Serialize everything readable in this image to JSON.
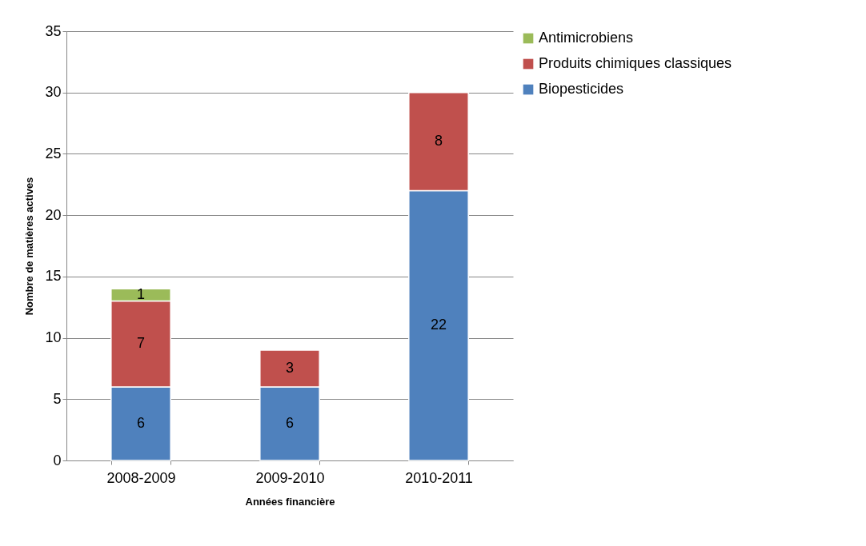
{
  "chart_data": {
    "type": "bar",
    "stacked": true,
    "xlabel": "Années financière",
    "ylabel": "Nombre de matières actives",
    "categories": [
      "2008-2009",
      "2009-2010",
      "2010-2011"
    ],
    "series": [
      {
        "name": "Biopesticides",
        "color": "#4f81bd",
        "values": [
          6,
          6,
          22
        ]
      },
      {
        "name": "Produits chimiques classiques",
        "color": "#c0504d",
        "values": [
          7,
          3,
          8
        ]
      },
      {
        "name": "Antimicrobiens",
        "color": "#9bbb59",
        "values": [
          1,
          null,
          null
        ]
      }
    ],
    "ylim": [
      0,
      35
    ],
    "yticks": [
      0,
      5,
      10,
      15,
      20,
      25,
      30,
      35
    ],
    "grid": "y",
    "legend": "right",
    "data_labels": true
  }
}
